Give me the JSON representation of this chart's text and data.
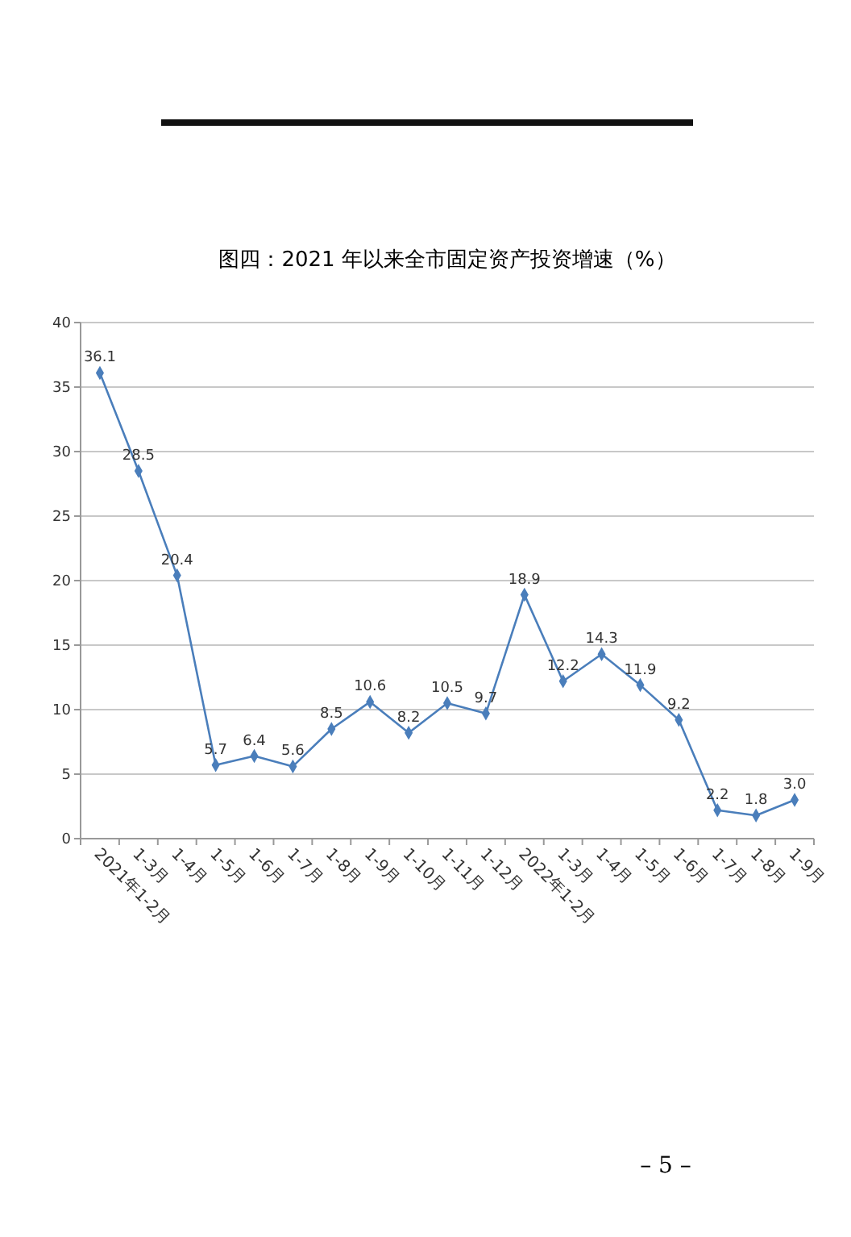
{
  "chart_data": {
    "type": "line",
    "title": "图四：2021 年以来全市固定资产投资增速（%）",
    "categories": [
      "2021年1-2月",
      "1-3月",
      "1-4月",
      "1-5月",
      "1-6月",
      "1-7月",
      "1-8月",
      "1-9月",
      "1-10月",
      "1-11月",
      "1-12月",
      "2022年1-2月",
      "1-3月",
      "1-4月",
      "1-5月",
      "1-6月",
      "1-7月",
      "1-8月",
      "1-9月"
    ],
    "series": [
      {
        "color": "#4a7ebb",
        "values": [
          36.1,
          28.5,
          20.4,
          5.7,
          6.4,
          5.6,
          8.5,
          10.6,
          8.2,
          10.5,
          9.7,
          18.9,
          12.2,
          14.3,
          11.9,
          9.2,
          2.2,
          1.8,
          3.0
        ]
      }
    ],
    "value_labels": [
      "36.1",
      "28.5",
      "20.4",
      "5.7",
      "6.4",
      "5.6",
      "8.5",
      "10.6",
      "8.2",
      "10.5",
      "9.7",
      "18.9",
      "12.2",
      "14.3",
      "11.9",
      "9.2",
      "2.2",
      "1.8",
      "3.0"
    ],
    "ylim": [
      0,
      40
    ],
    "yticks": [
      0,
      5,
      10,
      15,
      20,
      25,
      30,
      35,
      40
    ],
    "grid": "y",
    "marker": "diamond",
    "annotations": [
      "– 5 –"
    ]
  }
}
